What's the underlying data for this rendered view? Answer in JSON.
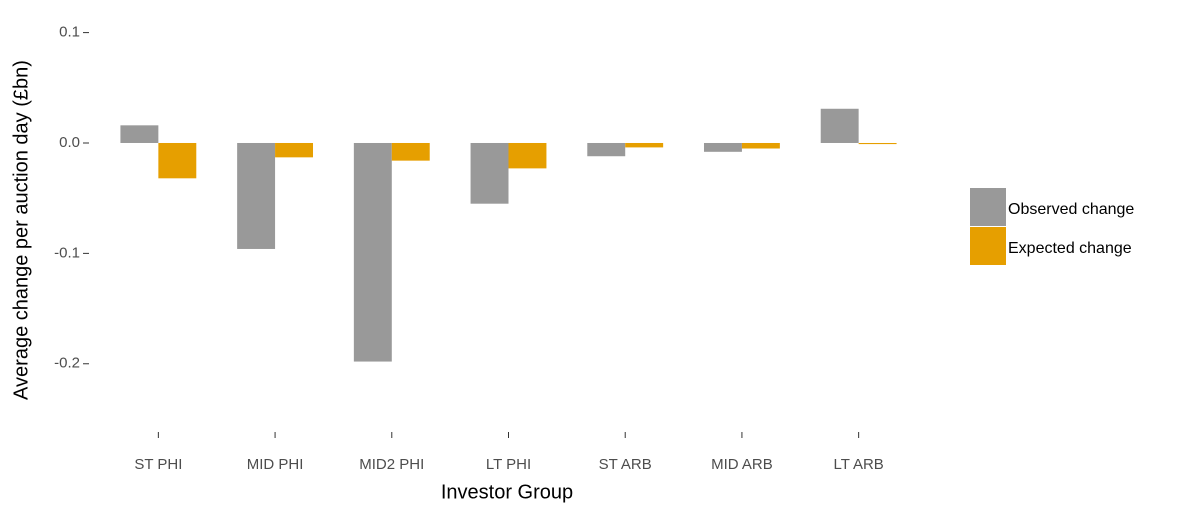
{
  "chart_data": {
    "type": "bar",
    "categories": [
      "ST PHI",
      "MID PHI",
      "MID2 PHI",
      "LT PHI",
      "ST ARB",
      "MID ARB",
      "LT ARB"
    ],
    "series": [
      {
        "name": "Observed change",
        "color": "#999999",
        "values": [
          0.016,
          -0.096,
          -0.198,
          -0.055,
          -0.012,
          -0.008,
          0.031
        ]
      },
      {
        "name": "Expected change",
        "color": "#E69F00",
        "values": [
          -0.032,
          -0.013,
          -0.016,
          -0.023,
          -0.004,
          -0.005,
          -0.001
        ]
      }
    ],
    "xlabel": "Investor Group",
    "ylabel": "Average change per auction day (£bn)",
    "ylim": [
      -0.26,
      0.125
    ],
    "yticks": [
      0.1,
      {
        "value": 0,
        "label": "0.0"
      },
      -0.1,
      -0.2
    ],
    "grid": false,
    "legend": "right"
  }
}
